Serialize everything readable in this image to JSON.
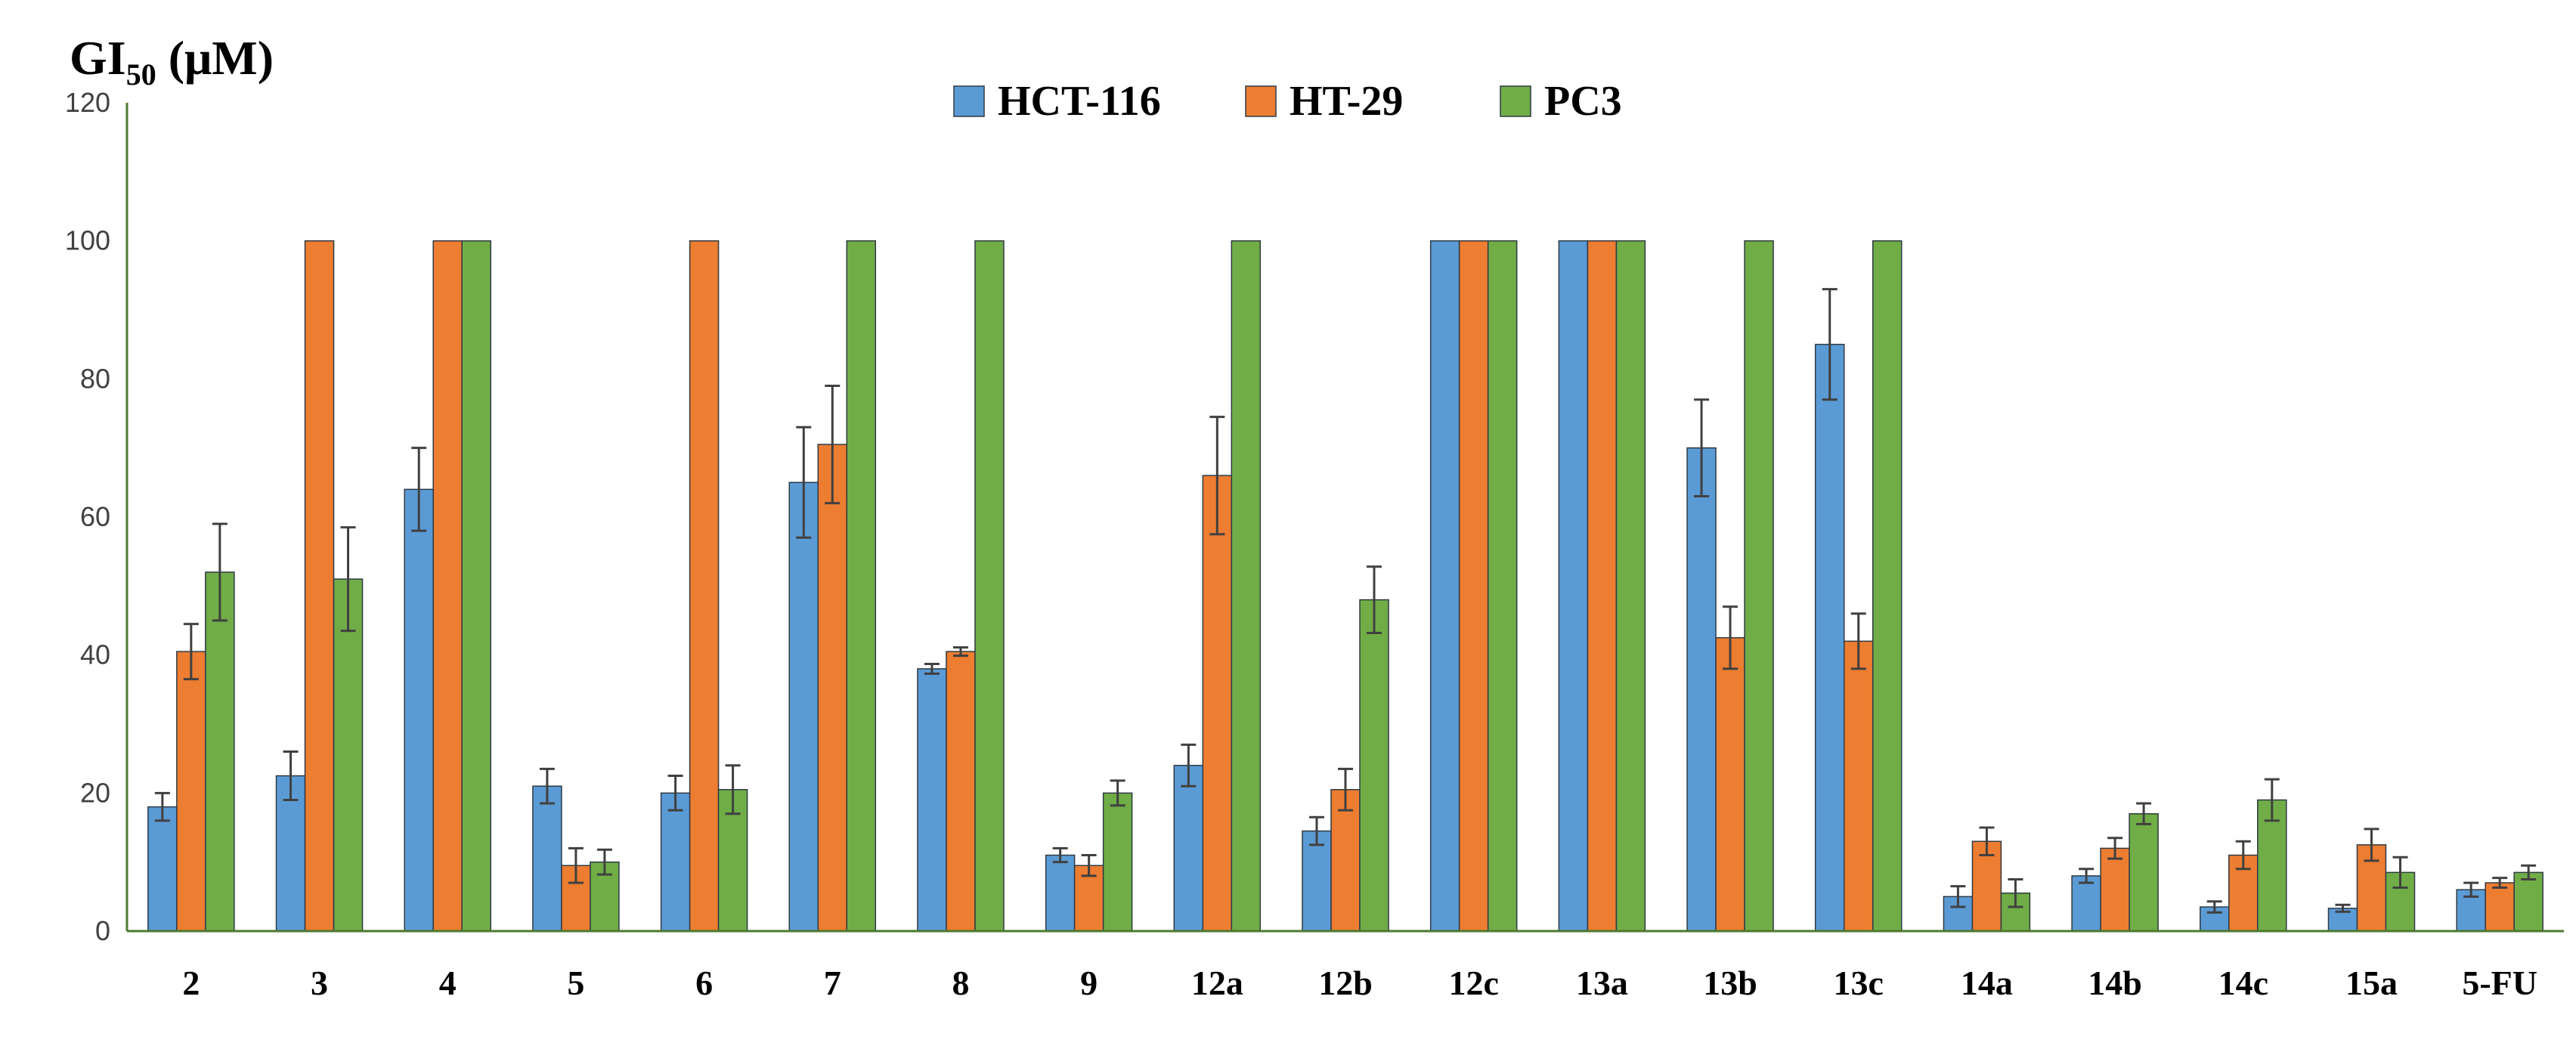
{
  "chart_data": {
    "type": "bar",
    "title": "",
    "ylabel_main": "GI",
    "ylabel_sub": "50",
    "ylabel_unit": " (μM)",
    "xlabel": "",
    "ylim": [
      0,
      120
    ],
    "yticks": [
      0,
      20,
      40,
      60,
      80,
      100,
      120
    ],
    "legend_position": "top-center",
    "grid": false,
    "categories": [
      "2",
      "3",
      "4",
      "5",
      "6",
      "7",
      "8",
      "9",
      "12a",
      "12b",
      "12c",
      "13a",
      "13b",
      "13c",
      "14a",
      "14b",
      "14c",
      "15a",
      "5-FU"
    ],
    "series": [
      {
        "name": "HCT-116",
        "color": "#5b9bd5",
        "values": [
          18,
          22.5,
          64,
          21,
          20,
          65,
          38,
          11,
          24,
          14.5,
          100,
          100,
          70,
          85,
          5,
          8,
          3.5,
          3.3,
          6
        ],
        "errors": [
          2,
          3.5,
          6,
          2.5,
          2.5,
          8,
          0.7,
          1,
          3,
          2,
          0,
          0,
          7,
          8,
          1.5,
          1,
          0.8,
          0.5,
          1
        ]
      },
      {
        "name": "HT-29",
        "color": "#ed7d31",
        "values": [
          40.5,
          100,
          100,
          9.5,
          100,
          70.5,
          40.5,
          9.5,
          66,
          20.5,
          100,
          100,
          42.5,
          42,
          13,
          12,
          11,
          12.5,
          7
        ],
        "errors": [
          4,
          0,
          0,
          2.5,
          0,
          8.5,
          0.6,
          1.5,
          8.5,
          3,
          0,
          0,
          4.5,
          4,
          2,
          1.5,
          2,
          2.3,
          0.7
        ]
      },
      {
        "name": "PC3",
        "color": "#70ad47",
        "values": [
          52,
          51,
          100,
          10,
          20.5,
          100,
          100,
          20,
          100,
          48,
          100,
          100,
          100,
          100,
          5.5,
          17,
          19,
          8.5,
          8.5
        ],
        "errors": [
          7,
          7.5,
          0,
          1.8,
          3.5,
          0,
          0,
          1.8,
          0,
          4.8,
          0,
          0,
          0,
          0,
          2,
          1.5,
          3,
          2.2,
          1
        ]
      }
    ]
  }
}
